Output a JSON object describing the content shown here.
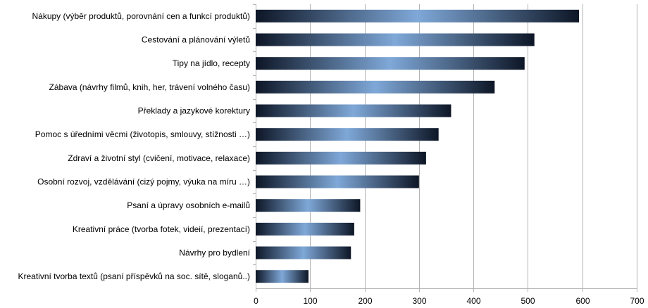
{
  "chart_data": {
    "type": "bar",
    "orientation": "horizontal",
    "categories": [
      "Nákupy (výběr produktů, porovnání cen a funkcí produktů)",
      "Cestování a plánování výletů",
      "Tipy na jídlo, recepty",
      "Zábava (návrhy filmů, knih, her, trávení volného času)",
      "Překlady a jazykové korektury",
      "Pomoc s úředními věcmi (životopis, smlouvy, stížnosti …)",
      "Zdraví a životní styl (cvičení, motivace, relaxace)",
      "Osobní rozvoj, vzdělávání (cizý pojmy, výuka na míru …)",
      "Psaní a úpravy osobních e-mailů",
      "Kreativní práce (tvorba fotek, videií, prezentací)",
      "Návrhy pro bydlení",
      "Kreativní tvorba textů (psaní příspěvků na soc. sítě, sloganů..)"
    ],
    "values": [
      594,
      512,
      494,
      439,
      359,
      336,
      313,
      300,
      192,
      181,
      175,
      97
    ],
    "title": "",
    "xlabel": "",
    "ylabel": "",
    "xlim": [
      0,
      700
    ],
    "x_ticks": [
      "0",
      "100",
      "200",
      "300",
      "400",
      "500",
      "600",
      "700"
    ],
    "grid": "vertical",
    "legend": "none",
    "colors": {
      "bar_dark": "#0d1626",
      "bar_light": "#7fa8d8",
      "grid": "#b3b3b3"
    }
  }
}
